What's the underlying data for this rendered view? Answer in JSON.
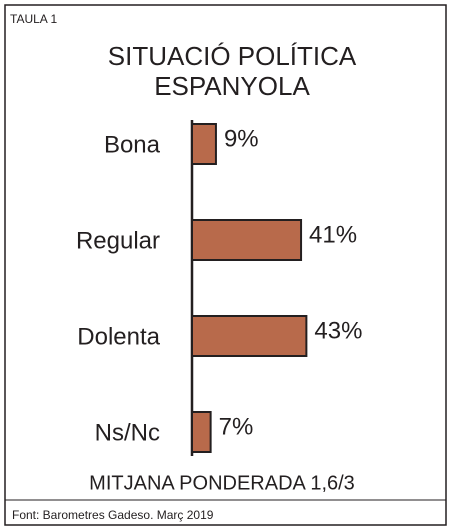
{
  "label": "TAULA 1",
  "chart_data": {
    "type": "bar",
    "orientation": "horizontal",
    "title": [
      "SITUACIÓ POLÍTICA",
      "ESPANYOLA"
    ],
    "categories": [
      "Bona",
      "Regular",
      "Dolenta",
      "Ns/Nc"
    ],
    "values": [
      9,
      41,
      43,
      7
    ],
    "value_labels": [
      "9%",
      "41%",
      "43%",
      "7%"
    ],
    "color": "#b86a4b",
    "annotation": "MITJANA PONDERADA 1,6/3",
    "source": "Font:  Barometres Gadeso. Març 2019"
  }
}
